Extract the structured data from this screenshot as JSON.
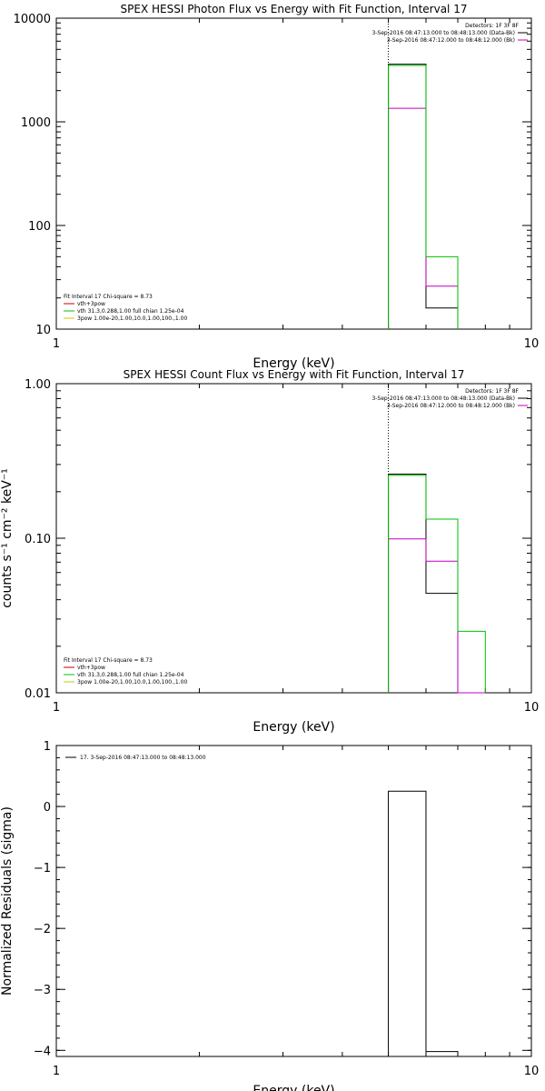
{
  "chart_data": [
    {
      "type": "line",
      "title": "SPEX HESSI Photon Flux vs Energy with Fit Function, Interval 17",
      "xlabel": "Energy (keV)",
      "ylabel": "",
      "xscale": "log",
      "yscale": "log",
      "xlim": [
        1,
        10
      ],
      "ylim": [
        10,
        10000
      ],
      "x_ticks": [
        "1",
        "10"
      ],
      "y_ticks": [
        "10",
        "100",
        "1000",
        "10000"
      ],
      "y_tick_values": [
        10,
        100,
        1000,
        10000
      ],
      "vline_x": 5.0,
      "legend_tr": [
        {
          "text": "Detectors: 1F 3F 8F",
          "color": ""
        },
        {
          "text": "3-Sep-2016 08:47:13.000 to 08:48:13.000 (Data-Bk)",
          "color": "#000000"
        },
        {
          "text": "3-Sep-2016 08:47:12.000 to 08:48:12.000 (Bk)",
          "color": "#c000c0"
        }
      ],
      "legend_bl": [
        {
          "text": "Fit Interval 17    Chi-square = 8.73",
          "color": ""
        },
        {
          "text": "vth+3pow",
          "color": "#c00000"
        },
        {
          "text": "vth 31.3,0.288,1.00  full chian 1.25e-04",
          "color": "#00c000"
        },
        {
          "text": "3pow 1.00e-20,1.00,10.0,1.00,100.,1.00",
          "color": "#c8c800"
        }
      ],
      "series": [
        {
          "color": "#000000",
          "edges": [
            5.0,
            6.0,
            7.0
          ],
          "values": [
            3600,
            16
          ]
        },
        {
          "color": "#c000c0",
          "edges": [
            5.0,
            6.0,
            7.0
          ],
          "values": [
            1350,
            26
          ]
        },
        {
          "color": "#00c000",
          "edges": [
            5.0,
            6.0,
            7.0
          ],
          "values": [
            3500,
            50
          ]
        }
      ]
    },
    {
      "type": "line",
      "title": "SPEX HESSI Count Flux vs Energy with Fit Function, Interval 17",
      "xlabel": "Energy (keV)",
      "ylabel": "counts s⁻¹ cm⁻² keV⁻¹",
      "xscale": "log",
      "yscale": "log",
      "xlim": [
        1,
        10
      ],
      "ylim": [
        0.01,
        1.0
      ],
      "x_ticks": [
        "1",
        "10"
      ],
      "y_ticks": [
        "0.01",
        "0.10",
        "1.00"
      ],
      "y_tick_values": [
        0.01,
        0.1,
        1.0
      ],
      "vline_x": 5.0,
      "legend_tr": [
        {
          "text": "Detectors: 1F 3F 8F",
          "color": ""
        },
        {
          "text": "3-Sep-2016 08:47:13.000 to 08:48:13.000 (Data-Bk)",
          "color": "#000000"
        },
        {
          "text": "3-Sep-2016 08:47:12.000 to 08:48:12.000 (Bk)",
          "color": "#c000c0"
        }
      ],
      "legend_bl": [
        {
          "text": "Fit Interval 17    Chi-square = 8.73",
          "color": ""
        },
        {
          "text": "vth+3pow",
          "color": "#c00000"
        },
        {
          "text": "vth 31.3,0.288,1.00  full chian 1.25e-04",
          "color": "#00c000"
        },
        {
          "text": "3pow 1.00e-20,1.00,10.0,1.00,100.,1.00",
          "color": "#c8c800"
        }
      ],
      "series": [
        {
          "color": "#000000",
          "edges": [
            5.0,
            6.0,
            7.0
          ],
          "values": [
            0.26,
            0.044
          ]
        },
        {
          "color": "#c000c0",
          "edges": [
            5.0,
            6.0,
            7.0,
            8.0
          ],
          "values": [
            0.099,
            0.071,
            0.01
          ]
        },
        {
          "color": "#00c000",
          "edges": [
            5.0,
            6.0,
            7.0,
            8.0
          ],
          "values": [
            0.255,
            0.133,
            0.025
          ]
        }
      ]
    },
    {
      "type": "line",
      "title": "",
      "xlabel": "Energy (keV)",
      "ylabel": "Normalized Residuals (sigma)",
      "xscale": "log",
      "yscale": "linear",
      "xlim": [
        1,
        10
      ],
      "ylim": [
        -4.1,
        1.0
      ],
      "x_ticks": [
        "1",
        "10"
      ],
      "y_ticks": [
        "−4",
        "−3",
        "−2",
        "−1",
        "0",
        "1"
      ],
      "y_tick_values": [
        -4,
        -3,
        -2,
        -1,
        0,
        1
      ],
      "legend_tl": [
        {
          "text": "17.  3-Sep-2016 08:47:13.000 to 08:48:13.000",
          "color": "#000000"
        }
      ],
      "series": [
        {
          "color": "#000000",
          "edges": [
            5.0,
            6.0,
            7.0
          ],
          "values": [
            0.25,
            -4.02
          ]
        }
      ]
    }
  ]
}
